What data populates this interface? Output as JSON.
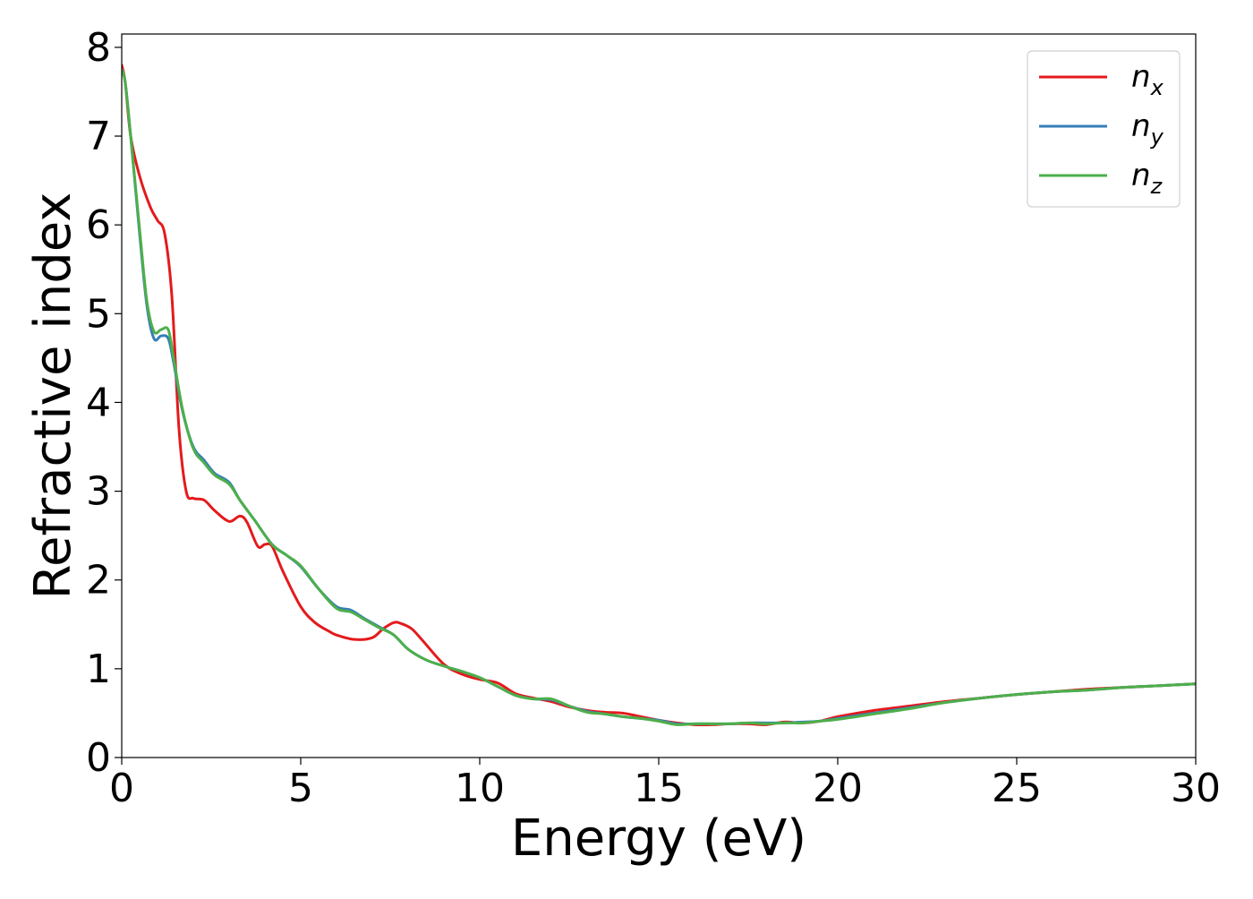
{
  "chart_data": {
    "type": "line",
    "xlabel": "Energy (eV)",
    "ylabel": "Refractive index",
    "xlim": [
      0,
      30
    ],
    "ylim": [
      0,
      8.15
    ],
    "xticks": [
      0,
      5,
      10,
      15,
      20,
      25,
      30
    ],
    "yticks": [
      0,
      1,
      2,
      3,
      4,
      5,
      6,
      7,
      8
    ],
    "grid": false,
    "legend_position": "top-right",
    "series": [
      {
        "name": "n_x",
        "label_base": "n",
        "label_sub": "x",
        "color": "#e41a1c",
        "x": [
          0,
          0.1,
          0.25,
          0.5,
          0.8,
          1.0,
          1.2,
          1.4,
          1.6,
          1.8,
          2.0,
          2.3,
          2.6,
          3.0,
          3.3,
          3.5,
          3.8,
          4.0,
          4.2,
          4.5,
          5.0,
          5.4,
          5.8,
          6.0,
          6.5,
          7.0,
          7.3,
          7.6,
          7.8,
          8.1,
          8.4,
          9.0,
          9.5,
          10.0,
          10.5,
          11.0,
          11.5,
          12.0,
          12.5,
          13.0,
          13.5,
          14.0,
          14.5,
          15.0,
          15.5,
          16.0,
          16.5,
          17.0,
          17.5,
          18.0,
          18.5,
          19.0,
          19.5,
          20.0,
          21.0,
          22.0,
          23.0,
          24.0,
          25.0,
          26.0,
          27.0,
          28.0,
          29.0,
          30.0
        ],
        "y": [
          7.8,
          7.6,
          7.0,
          6.55,
          6.2,
          6.05,
          5.9,
          5.2,
          3.7,
          3.0,
          2.92,
          2.9,
          2.78,
          2.66,
          2.72,
          2.65,
          2.38,
          2.4,
          2.38,
          2.1,
          1.7,
          1.52,
          1.42,
          1.38,
          1.33,
          1.35,
          1.45,
          1.52,
          1.51,
          1.45,
          1.32,
          1.05,
          0.94,
          0.88,
          0.84,
          0.72,
          0.67,
          0.63,
          0.57,
          0.53,
          0.51,
          0.5,
          0.46,
          0.42,
          0.39,
          0.37,
          0.37,
          0.38,
          0.38,
          0.37,
          0.4,
          0.39,
          0.41,
          0.46,
          0.53,
          0.58,
          0.63,
          0.67,
          0.71,
          0.74,
          0.77,
          0.79,
          0.81,
          0.83
        ]
      },
      {
        "name": "n_y",
        "label_base": "n",
        "label_sub": "y",
        "color": "#377eb8",
        "x": [
          0,
          0.1,
          0.25,
          0.5,
          0.7,
          0.9,
          1.1,
          1.3,
          1.45,
          1.7,
          2.0,
          2.3,
          2.6,
          3.0,
          3.3,
          3.7,
          4.2,
          4.6,
          5.0,
          5.5,
          6.0,
          6.4,
          6.8,
          7.2,
          7.6,
          8.0,
          8.5,
          9.0,
          9.5,
          10.0,
          10.5,
          11.0,
          11.5,
          12.0,
          12.5,
          13.0,
          13.5,
          14.0,
          14.5,
          15.0,
          15.5,
          16.0,
          16.5,
          17.0,
          17.5,
          18.0,
          18.5,
          19.0,
          19.5,
          20.0,
          21.0,
          22.0,
          23.0,
          24.0,
          25.0,
          26.0,
          27.0,
          28.0,
          29.0,
          30.0
        ],
        "y": [
          7.75,
          7.6,
          7.0,
          5.9,
          5.1,
          4.72,
          4.75,
          4.72,
          4.45,
          3.9,
          3.5,
          3.35,
          3.2,
          3.1,
          2.9,
          2.68,
          2.4,
          2.28,
          2.15,
          1.9,
          1.7,
          1.66,
          1.56,
          1.47,
          1.38,
          1.22,
          1.1,
          1.03,
          0.97,
          0.9,
          0.8,
          0.7,
          0.66,
          0.65,
          0.58,
          0.52,
          0.49,
          0.46,
          0.44,
          0.42,
          0.38,
          0.38,
          0.38,
          0.38,
          0.39,
          0.39,
          0.39,
          0.4,
          0.41,
          0.44,
          0.5,
          0.56,
          0.62,
          0.67,
          0.71,
          0.74,
          0.76,
          0.79,
          0.81,
          0.83
        ]
      },
      {
        "name": "n_z",
        "label_base": "n",
        "label_sub": "z",
        "color": "#4daf4a",
        "x": [
          0,
          0.1,
          0.25,
          0.5,
          0.7,
          0.9,
          1.1,
          1.3,
          1.45,
          1.7,
          2.0,
          2.3,
          2.6,
          3.0,
          3.3,
          3.7,
          4.2,
          4.6,
          5.0,
          5.5,
          6.0,
          6.4,
          6.8,
          7.2,
          7.6,
          8.0,
          8.5,
          9.0,
          9.5,
          10.0,
          10.5,
          11.0,
          11.5,
          12.0,
          12.5,
          13.0,
          13.5,
          14.0,
          14.5,
          15.0,
          15.5,
          16.0,
          16.5,
          17.0,
          17.5,
          18.0,
          18.5,
          19.0,
          19.5,
          20.0,
          21.0,
          22.0,
          23.0,
          24.0,
          25.0,
          26.0,
          27.0,
          28.0,
          29.0,
          30.0
        ],
        "y": [
          7.75,
          7.6,
          7.0,
          5.95,
          5.15,
          4.8,
          4.82,
          4.82,
          4.5,
          3.92,
          3.48,
          3.32,
          3.18,
          3.08,
          2.9,
          2.68,
          2.4,
          2.28,
          2.16,
          1.9,
          1.68,
          1.64,
          1.55,
          1.46,
          1.38,
          1.22,
          1.1,
          1.03,
          0.97,
          0.9,
          0.8,
          0.7,
          0.66,
          0.66,
          0.58,
          0.51,
          0.49,
          0.46,
          0.44,
          0.41,
          0.37,
          0.38,
          0.38,
          0.38,
          0.39,
          0.38,
          0.39,
          0.39,
          0.41,
          0.43,
          0.49,
          0.55,
          0.62,
          0.67,
          0.71,
          0.74,
          0.76,
          0.79,
          0.81,
          0.83
        ]
      }
    ]
  }
}
